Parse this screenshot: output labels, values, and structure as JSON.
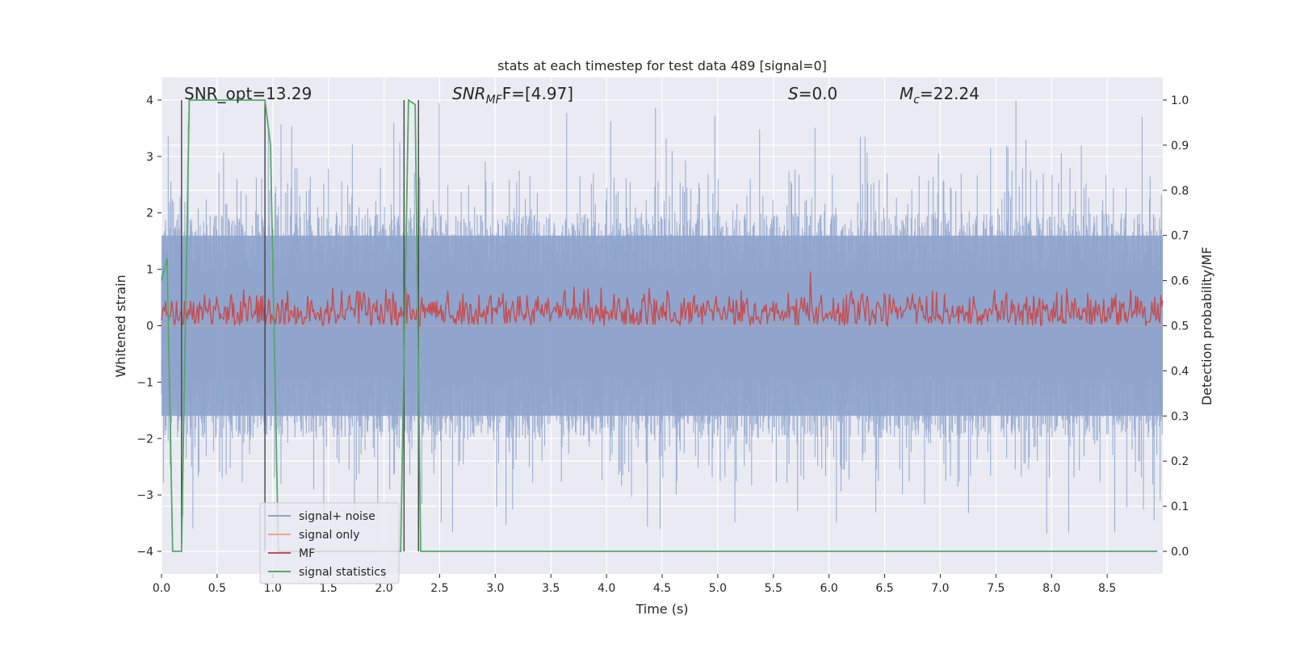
{
  "chart_data": {
    "type": "line",
    "title": "stats at each timestep for test data 489 [signal=0]",
    "xlabel": "Time (s)",
    "ylabel_left": "Whitened strain",
    "ylabel_right": "Detection probability/MF",
    "xlim": [
      0.0,
      9.0
    ],
    "ylim_left": [
      -4.4,
      4.4
    ],
    "ylim_right": [
      -0.05,
      1.05
    ],
    "x_ticks": [
      "0.0",
      "0.5",
      "1.0",
      "1.5",
      "2.0",
      "2.5",
      "3.0",
      "3.5",
      "4.0",
      "4.5",
      "5.0",
      "5.5",
      "6.0",
      "6.5",
      "7.0",
      "7.5",
      "8.0",
      "8.5"
    ],
    "y_ticks_left": [
      "−4",
      "−3",
      "−2",
      "−1",
      "0",
      "1",
      "2",
      "3",
      "4"
    ],
    "y_ticks_right": [
      "0.0",
      "0.1",
      "0.2",
      "0.3",
      "0.4",
      "0.5",
      "0.6",
      "0.7",
      "0.8",
      "0.9",
      "1.0"
    ],
    "grid": true,
    "legend_position": "lower-left",
    "annotations": {
      "snr_opt": "SNR_opt=13.29",
      "snr_mf_main": "SNR",
      "snr_mf_sub": "MF",
      "snr_mf_rest": "F=[4.97]",
      "s_main": "S",
      "s_rest": "=0.0",
      "mc_main": "M",
      "mc_sub": "c",
      "mc_rest": "=22.24"
    },
    "series": [
      {
        "name": "signal+ noise",
        "color": "#8fa4cc",
        "axis": "left",
        "envelope_approx": {
          "upper_max": 4.0,
          "lower_min": -3.7,
          "dense_band": [
            -1.6,
            1.6
          ]
        }
      },
      {
        "name": "signal only",
        "color": "#f0a37f",
        "axis": "left",
        "values": "approximately zero"
      },
      {
        "name": "MF",
        "color": "#c44e52",
        "axis": "right",
        "band_approx": [
          0.5,
          0.59
        ],
        "peak": {
          "x": 5.83,
          "y": 0.62
        }
      },
      {
        "name": "signal statistics",
        "color": "#55a868",
        "axis": "right",
        "x": [
          0.0,
          0.05,
          0.1,
          0.13,
          0.18,
          0.25,
          0.93,
          0.98,
          1.05,
          1.1,
          2.15,
          2.22,
          2.28,
          2.33,
          2.38,
          8.95
        ],
        "y": [
          0.6,
          0.65,
          0.0,
          0.0,
          0.0,
          1.0,
          1.0,
          0.9,
          0.0,
          0.0,
          0.0,
          1.0,
          0.99,
          0.0,
          0.0,
          0.0
        ]
      }
    ],
    "vertical_markers_x": [
      0.18,
      0.93,
      2.18,
      2.31
    ]
  }
}
